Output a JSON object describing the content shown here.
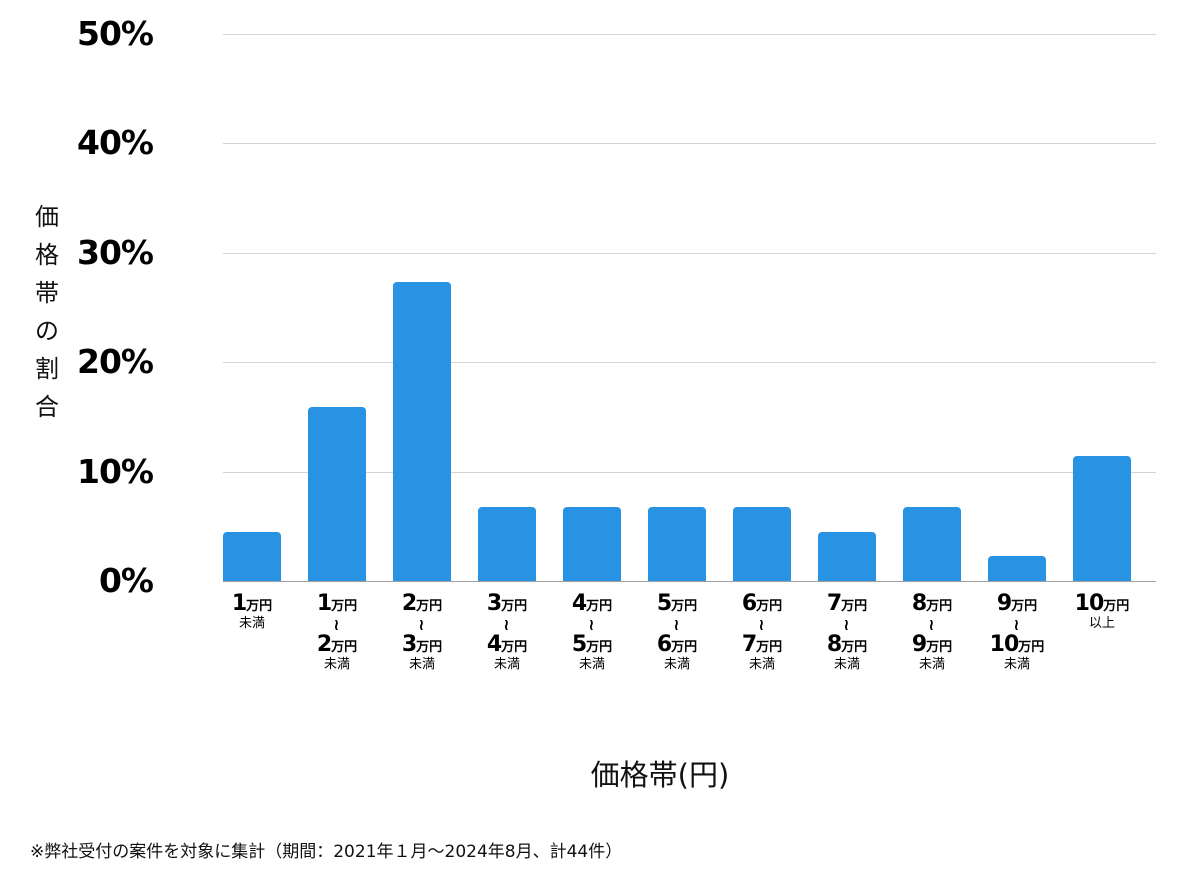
{
  "chart_data": {
    "type": "bar",
    "title": "",
    "xlabel": "価格帯(円)",
    "ylabel": "価格帯の割合",
    "ylim": [
      0,
      50
    ],
    "yticks": [
      "0%",
      "10%",
      "20%",
      "30%",
      "40%",
      "50%"
    ],
    "grid": true,
    "bar_color": "#2893e3",
    "categories": [
      "1万円未満",
      "1万円〜2万円未満",
      "2万円〜3万円未満",
      "3万円〜4万円未満",
      "4万円〜5万円未満",
      "5万円〜6万円未満",
      "6万円〜7万円未満",
      "7万円〜8万円未満",
      "8万円〜9万円未満",
      "9万円〜10万円未満",
      "10万円以上"
    ],
    "values": [
      4.5,
      15.9,
      27.3,
      6.8,
      6.8,
      6.8,
      6.8,
      4.5,
      6.8,
      2.3,
      11.4
    ],
    "counts_estimated": [
      2,
      7,
      12,
      3,
      3,
      3,
      3,
      2,
      3,
      1,
      5
    ],
    "total_count": 44,
    "footnote": "※弊社受付の案件を対象に集計（期間：2021年１月〜2024年8月、計44件）"
  },
  "ylabel_chars": [
    "価",
    "格",
    "帯",
    "の",
    "割",
    "合"
  ],
  "xlabels": [
    {
      "from": "1",
      "to": null,
      "unit": "万円",
      "suffix": "未満"
    },
    {
      "from": "1",
      "to": "2",
      "unit": "万円",
      "suffix": "未満"
    },
    {
      "from": "2",
      "to": "3",
      "unit": "万円",
      "suffix": "未満"
    },
    {
      "from": "3",
      "to": "4",
      "unit": "万円",
      "suffix": "未満"
    },
    {
      "from": "4",
      "to": "5",
      "unit": "万円",
      "suffix": "未満"
    },
    {
      "from": "5",
      "to": "6",
      "unit": "万円",
      "suffix": "未満"
    },
    {
      "from": "6",
      "to": "7",
      "unit": "万円",
      "suffix": "未満"
    },
    {
      "from": "7",
      "to": "8",
      "unit": "万円",
      "suffix": "未満"
    },
    {
      "from": "8",
      "to": "9",
      "unit": "万円",
      "suffix": "未満"
    },
    {
      "from": "9",
      "to": "10",
      "unit": "万円",
      "suffix": "未満"
    },
    {
      "from": "10",
      "to": null,
      "unit": "万円",
      "suffix": "以上"
    }
  ],
  "tilde": "~"
}
